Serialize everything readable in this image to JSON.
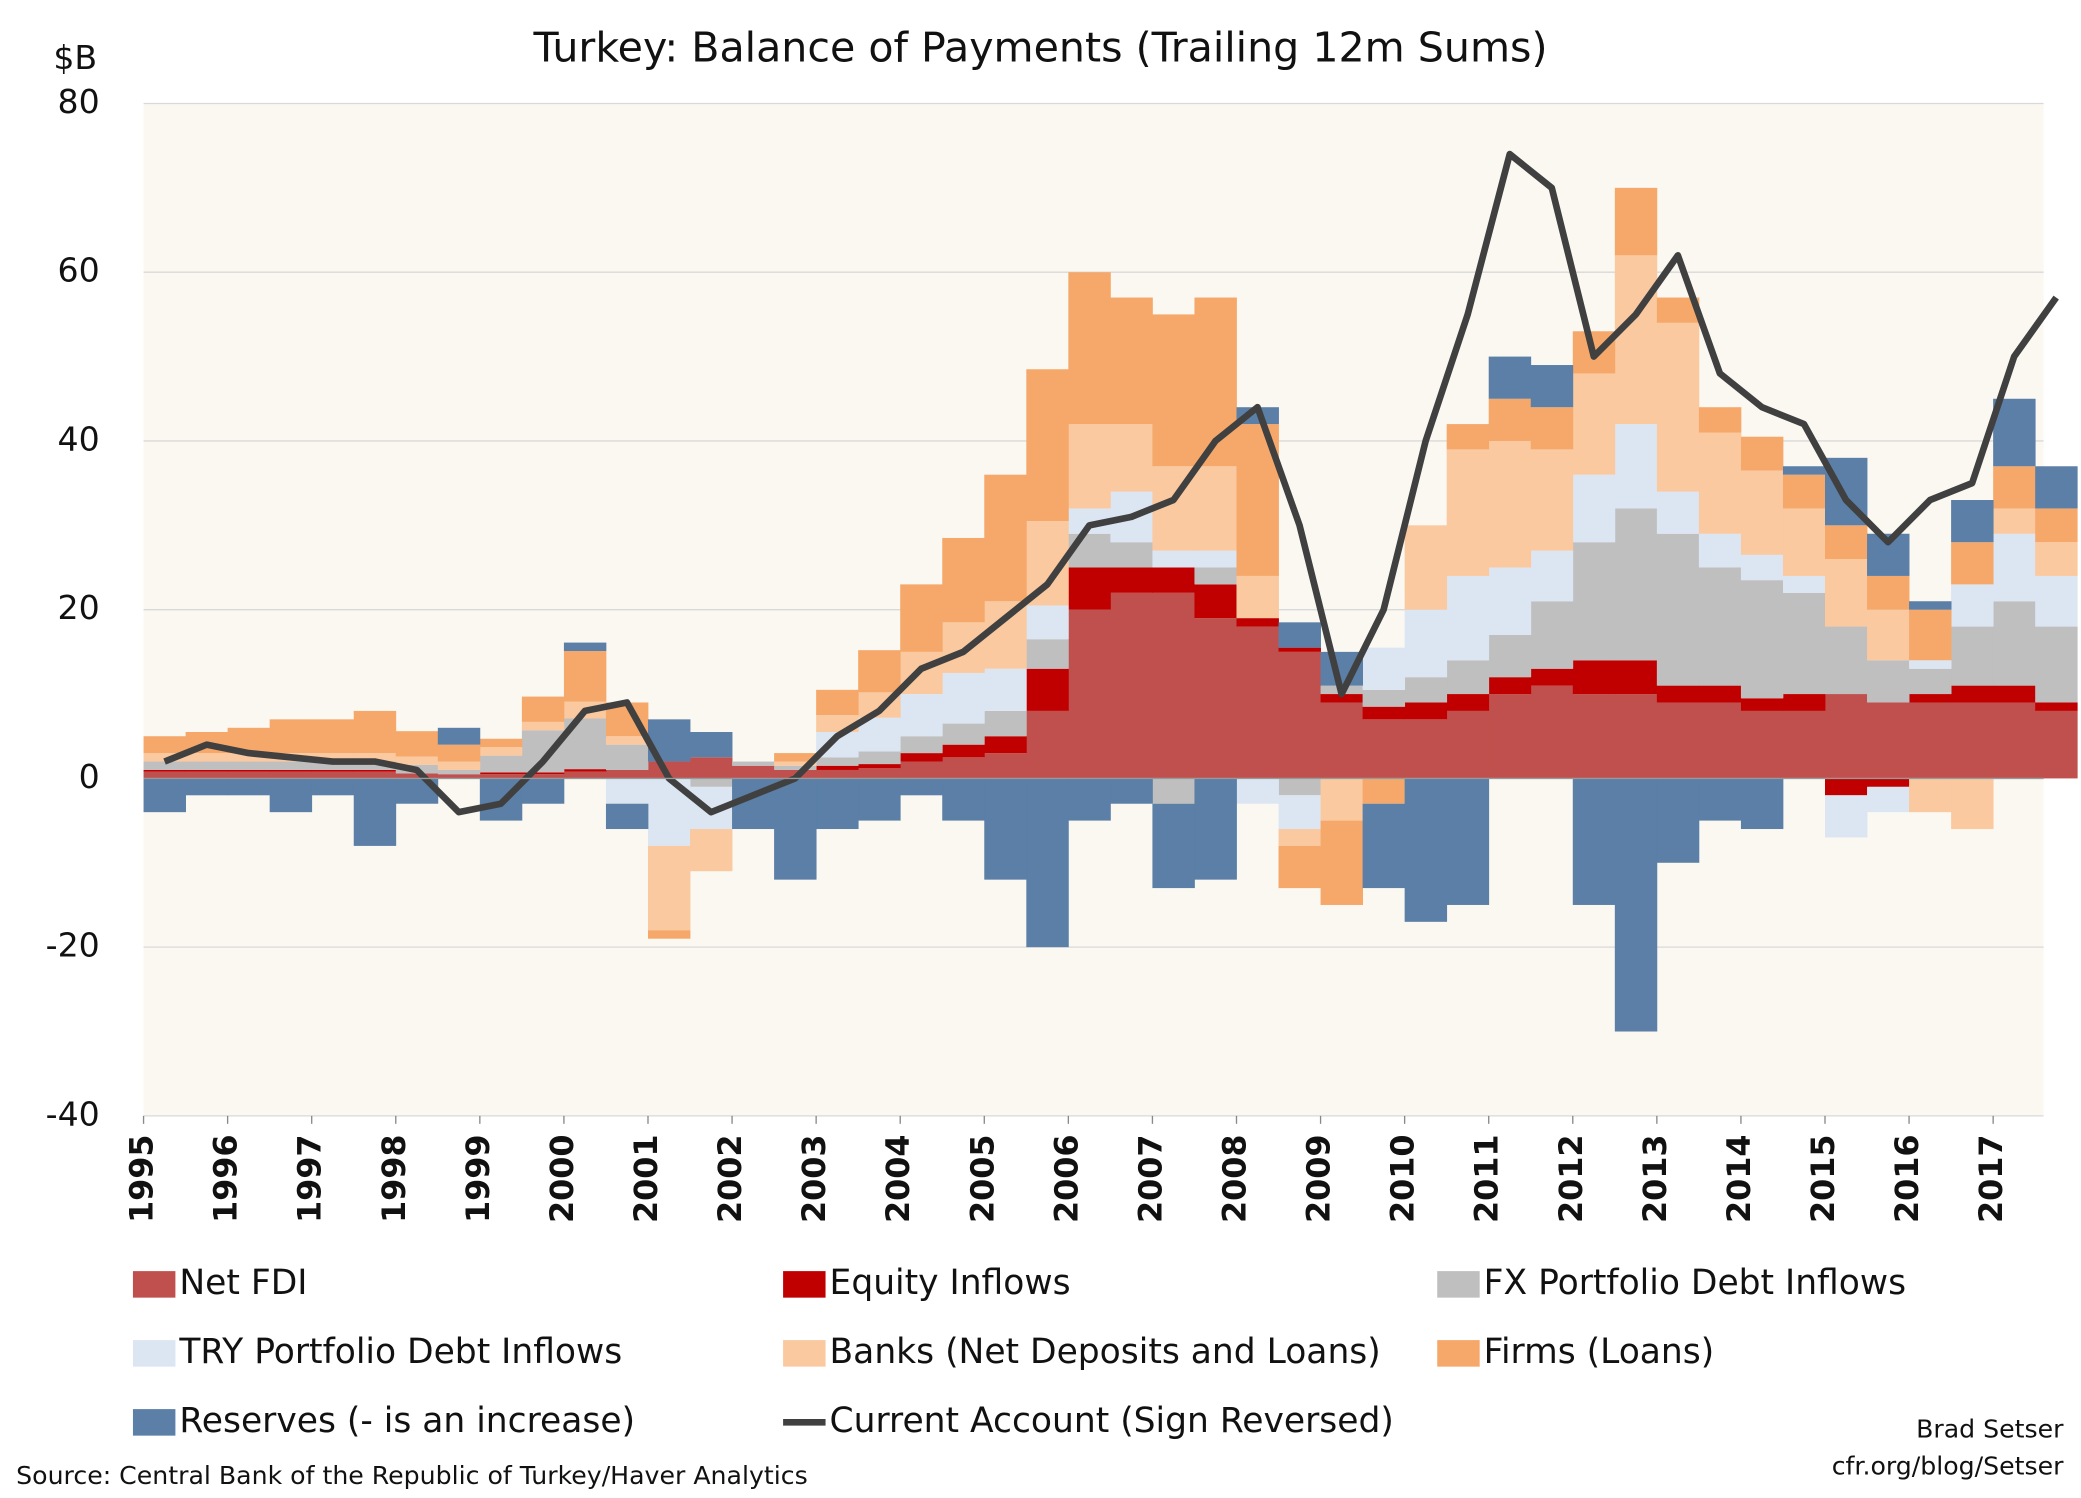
{
  "chart_data": {
    "type": "bar",
    "stacked": true,
    "title": "Turkey: Balance of Payments  (Trailing 12m Sums)",
    "y_label": "$B",
    "source": "Source: Central Bank of the Republic of Turkey/Haver Analytics",
    "credit": [
      "Brad Setser",
      "cfr.org/blog/Setser"
    ],
    "xlim": [
      1995,
      2017.6
    ],
    "ylim": [
      -40,
      80
    ],
    "xticks": [
      1995,
      1996,
      1997,
      1998,
      1999,
      2000,
      2001,
      2002,
      2003,
      2004,
      2005,
      2006,
      2007,
      2008,
      2009,
      2010,
      2011,
      2012,
      2013,
      2014,
      2015,
      2016,
      2017
    ],
    "yticks": [
      -40,
      -20,
      0,
      20,
      40,
      60,
      80
    ],
    "grid": true,
    "x": [
      1995,
      1995.5,
      1996,
      1996.5,
      1997,
      1997.5,
      1998,
      1998.5,
      1999,
      1999.5,
      2000,
      2000.5,
      2001,
      2001.5,
      2002,
      2002.5,
      2003,
      2003.5,
      2004,
      2004.5,
      2005,
      2005.5,
      2006,
      2006.5,
      2007,
      2007.5,
      2008,
      2008.5,
      2009,
      2009.5,
      2010,
      2010.5,
      2011,
      2011.5,
      2012,
      2012.5,
      2013,
      2013.5,
      2014,
      2014.5,
      2015,
      2015.5,
      2016,
      2016.5,
      2017,
      2017.5
    ],
    "series": [
      {
        "name": "Net FDI",
        "color": "#c0504d",
        "type": "bar",
        "values": [
          0.8,
          0.8,
          0.8,
          0.8,
          0.8,
          0.8,
          0.6,
          0.5,
          0.5,
          0.5,
          0.8,
          1,
          2,
          2.5,
          1.5,
          1,
          1,
          1.2,
          2,
          2.5,
          3,
          8,
          20,
          22,
          22,
          19,
          18,
          15,
          9,
          7,
          7,
          8,
          10,
          11,
          10,
          10,
          9,
          9,
          8,
          8,
          10,
          9,
          9,
          9,
          9,
          8
        ]
      },
      {
        "name": "Equity Inflows",
        "color": "#c00000",
        "type": "bar",
        "values": [
          0.2,
          0.2,
          0.2,
          0.2,
          0.2,
          0.2,
          0,
          0,
          0.2,
          0.2,
          0.3,
          0,
          0,
          0,
          0,
          0,
          0.5,
          0.5,
          1,
          1.5,
          2,
          5,
          5,
          3,
          3,
          4,
          1,
          0.5,
          1,
          1.5,
          2,
          2,
          2,
          2,
          4,
          4,
          2,
          2,
          1.5,
          2,
          -2,
          -1,
          1,
          2,
          2,
          1
        ]
      },
      {
        "name": "FX Portfolio Debt Inflows",
        "color": "#bfbfbf",
        "type": "bar",
        "values": [
          1,
          1,
          1,
          1,
          1,
          1,
          1,
          0.5,
          2,
          5,
          6,
          3,
          0,
          -1,
          0.5,
          0.5,
          1,
          1.5,
          2,
          2.5,
          3,
          3.5,
          4,
          3,
          -3,
          2,
          0,
          -2,
          1,
          2,
          3,
          4,
          5,
          8,
          14,
          18,
          18,
          14,
          14,
          12,
          8,
          5,
          3,
          7,
          10,
          9
        ]
      },
      {
        "name": "TRY Portfolio Debt Inflows",
        "color": "#dce6f2",
        "type": "bar",
        "values": [
          0,
          0,
          0,
          0,
          0,
          0,
          0,
          0,
          0,
          0,
          0,
          -3,
          -8,
          -5,
          0,
          0,
          3,
          4,
          5,
          6,
          5,
          4,
          3,
          6,
          2,
          2,
          -3,
          -4,
          0,
          5,
          8,
          10,
          8,
          6,
          8,
          10,
          5,
          4,
          3,
          2,
          -5,
          -3,
          1,
          5,
          8,
          6
        ]
      },
      {
        "name": "Banks (Net Deposits and Loans)",
        "color": "#fac9a0",
        "type": "bar",
        "values": [
          1,
          1,
          1,
          1,
          1,
          1,
          1,
          1,
          1,
          1,
          2,
          1,
          -10,
          -5,
          0,
          0.5,
          2,
          3,
          5,
          6,
          8,
          10,
          10,
          8,
          10,
          10,
          5,
          -2,
          -5,
          0,
          10,
          15,
          15,
          12,
          12,
          20,
          20,
          12,
          10,
          8,
          8,
          6,
          -4,
          -6,
          3,
          4
        ]
      },
      {
        "name": "Firms (Loans)",
        "color": "#f5a86a",
        "type": "bar",
        "values": [
          2,
          2.5,
          3,
          4,
          4,
          5,
          3,
          2,
          1,
          3,
          6,
          4,
          -1,
          0,
          0,
          1,
          3,
          5,
          8,
          10,
          15,
          18,
          18,
          15,
          18,
          20,
          18,
          -5,
          -10,
          -3,
          0,
          3,
          5,
          5,
          5,
          8,
          3,
          3,
          4,
          4,
          4,
          4,
          6,
          5,
          5,
          4
        ]
      },
      {
        "name": "Reserves (- is an increase)",
        "color": "#5b7fa6",
        "type": "bar",
        "values": [
          -4,
          -2,
          -2,
          -4,
          -2,
          -8,
          -3,
          2,
          -5,
          -3,
          1,
          -3,
          5,
          3,
          -6,
          -12,
          -6,
          -5,
          -2,
          -5,
          -12,
          -20,
          -5,
          -3,
          -10,
          -12,
          2,
          3,
          4,
          -10,
          -17,
          -15,
          5,
          5,
          -15,
          -30,
          -10,
          -5,
          -6,
          1,
          8,
          5,
          1,
          5,
          8,
          5
        ]
      },
      {
        "name": "Current Account (Sign Reversed)",
        "color": "#404040",
        "type": "line",
        "values": [
          2,
          4,
          3,
          2.5,
          2,
          2,
          1,
          -4,
          -3,
          2,
          8,
          9,
          0,
          -4,
          -2,
          0,
          5,
          8,
          13,
          15,
          19,
          23,
          30,
          31,
          33,
          40,
          44,
          30,
          10,
          20,
          40,
          55,
          74,
          70,
          50,
          55,
          62,
          48,
          44,
          42,
          33,
          28,
          33,
          35,
          50,
          57
        ]
      }
    ]
  }
}
